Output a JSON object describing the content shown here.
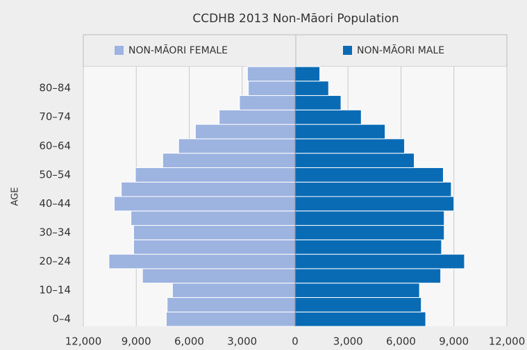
{
  "chart_data": {
    "type": "pyramid",
    "title": "CCDHB 2013 Non-Māori Population",
    "y_label": "AGE",
    "categories": [
      "0–4",
      null,
      "10–14",
      null,
      "20–24",
      null,
      "30–34",
      null,
      "40–44",
      null,
      "50–54",
      null,
      "60–64",
      null,
      "70–74",
      null,
      "80–84",
      null
    ],
    "series": [
      {
        "name": "NON-MĀORI FEMALE",
        "color": "#9db3e0",
        "side": "left",
        "values": [
          7300,
          7250,
          6950,
          8650,
          10550,
          9150,
          9150,
          9300,
          10250,
          9850,
          9050,
          7500,
          6600,
          5650,
          4300,
          3150,
          2650,
          2700
        ]
      },
      {
        "name": "NON-MĀORI MALE",
        "color": "#0a6bb5",
        "side": "right",
        "values": [
          7400,
          7150,
          7050,
          8250,
          9600,
          8300,
          8450,
          8450,
          9000,
          8850,
          8400,
          6750,
          6200,
          5100,
          3750,
          2600,
          1900,
          1400
        ]
      }
    ],
    "xlim": [
      -12000,
      12000
    ],
    "xticks": [
      {
        "value": -12000,
        "label": "12,000"
      },
      {
        "value": -9000,
        "label": "9,000"
      },
      {
        "value": -6000,
        "label": "6,000"
      },
      {
        "value": -3000,
        "label": "3,000"
      },
      0,
      {
        "value": 3000,
        "label": "3,000"
      },
      {
        "value": 6000,
        "label": "6,000"
      },
      {
        "value": 9000,
        "label": "9,000"
      },
      {
        "value": 12000,
        "label": "12,000"
      }
    ],
    "grid": true
  }
}
